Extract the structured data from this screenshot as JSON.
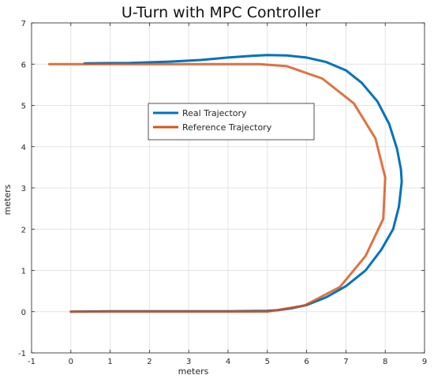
{
  "chart_data": {
    "type": "line",
    "title": "U-Turn with MPC Controller",
    "xlabel": "meters",
    "ylabel": "meters",
    "xlim": [
      -1,
      9
    ],
    "ylim": [
      -1,
      7
    ],
    "xticks": [
      -1,
      0,
      1,
      2,
      3,
      4,
      5,
      6,
      7,
      8,
      9
    ],
    "yticks": [
      -1,
      0,
      1,
      2,
      3,
      4,
      5,
      6,
      7
    ],
    "grid": true,
    "legend_position": "center",
    "series": [
      {
        "name": "Real Trajectory",
        "color": "#0072BD",
        "x": [
          0.35,
          1.5,
          2.5,
          3.3,
          4.0,
          4.6,
          5.0,
          5.5,
          6.0,
          6.5,
          7.0,
          7.4,
          7.8,
          8.1,
          8.3,
          8.4,
          8.42,
          8.35,
          8.2,
          7.9,
          7.5,
          7.0,
          6.5,
          6.0,
          5.6,
          5.3,
          5.0,
          4.0,
          3.0,
          2.0,
          1.0,
          0.0
        ],
        "y": [
          6.02,
          6.03,
          6.06,
          6.1,
          6.16,
          6.2,
          6.22,
          6.21,
          6.16,
          6.05,
          5.85,
          5.55,
          5.1,
          4.55,
          3.95,
          3.45,
          3.15,
          2.55,
          2.0,
          1.5,
          1.0,
          0.62,
          0.35,
          0.16,
          0.08,
          0.04,
          0.02,
          0.01,
          0.01,
          0.01,
          0.01,
          0.0
        ]
      },
      {
        "name": "Reference Trajectory",
        "color": "#D95319",
        "x": [
          -0.55,
          0.5,
          1.5,
          2.5,
          3.5,
          4.8,
          5.5,
          6.4,
          7.2,
          7.75,
          8.0,
          7.95,
          7.5,
          6.85,
          5.95,
          5.0,
          4.0,
          3.0,
          2.0,
          1.0,
          0.0
        ],
        "y": [
          6.0,
          6.0,
          6.0,
          6.0,
          6.0,
          6.0,
          5.95,
          5.65,
          5.05,
          4.2,
          3.25,
          2.25,
          1.35,
          0.6,
          0.15,
          0.0,
          0.0,
          0.0,
          0.0,
          0.0,
          0.0
        ]
      }
    ]
  }
}
